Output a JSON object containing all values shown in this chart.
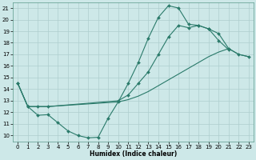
{
  "xlabel": "Humidex (Indice chaleur)",
  "bg_color": "#cde8e8",
  "line_color": "#2a7a6a",
  "grid_color": "#aecece",
  "xlim": [
    -0.5,
    23.5
  ],
  "ylim": [
    9.5,
    21.5
  ],
  "ytick_labels": [
    "10",
    "11",
    "12",
    "13",
    "14",
    "15",
    "16",
    "17",
    "18",
    "19",
    "20",
    "21"
  ],
  "yticks": [
    10,
    11,
    12,
    13,
    14,
    15,
    16,
    17,
    18,
    19,
    20,
    21
  ],
  "xticks": [
    0,
    1,
    2,
    3,
    4,
    5,
    6,
    7,
    8,
    9,
    10,
    11,
    12,
    13,
    14,
    15,
    16,
    17,
    18,
    19,
    20,
    21,
    22,
    23
  ],
  "line1_x": [
    0,
    1,
    2,
    3,
    4,
    5,
    6,
    7,
    8,
    9,
    10,
    11,
    12,
    13,
    14,
    15,
    16,
    17,
    18,
    19,
    20,
    21
  ],
  "line1_y": [
    14.5,
    12.5,
    11.75,
    11.8,
    11.1,
    10.4,
    10.0,
    9.8,
    9.85,
    11.5,
    12.9,
    14.5,
    16.3,
    18.4,
    20.2,
    21.2,
    21.0,
    19.6,
    19.5,
    19.2,
    18.2,
    17.4
  ],
  "line2_x": [
    0,
    1,
    2,
    3,
    10,
    11,
    12,
    13,
    14,
    15,
    16,
    17,
    18,
    19,
    20,
    21,
    22,
    23
  ],
  "line2_y": [
    14.5,
    12.5,
    12.5,
    12.5,
    12.9,
    13.1,
    13.4,
    13.8,
    14.3,
    14.8,
    15.3,
    15.8,
    16.3,
    16.8,
    17.2,
    17.5,
    17.0,
    16.8
  ],
  "line3_x": [
    0,
    1,
    2,
    3,
    10,
    11,
    12,
    13,
    14,
    15,
    16,
    17,
    18,
    19,
    20,
    21,
    22,
    23
  ],
  "line3_y": [
    14.5,
    12.5,
    12.5,
    12.5,
    13.0,
    13.5,
    14.5,
    15.5,
    17.0,
    18.5,
    19.5,
    19.3,
    19.5,
    19.2,
    18.8,
    17.5,
    17.0,
    16.8
  ]
}
